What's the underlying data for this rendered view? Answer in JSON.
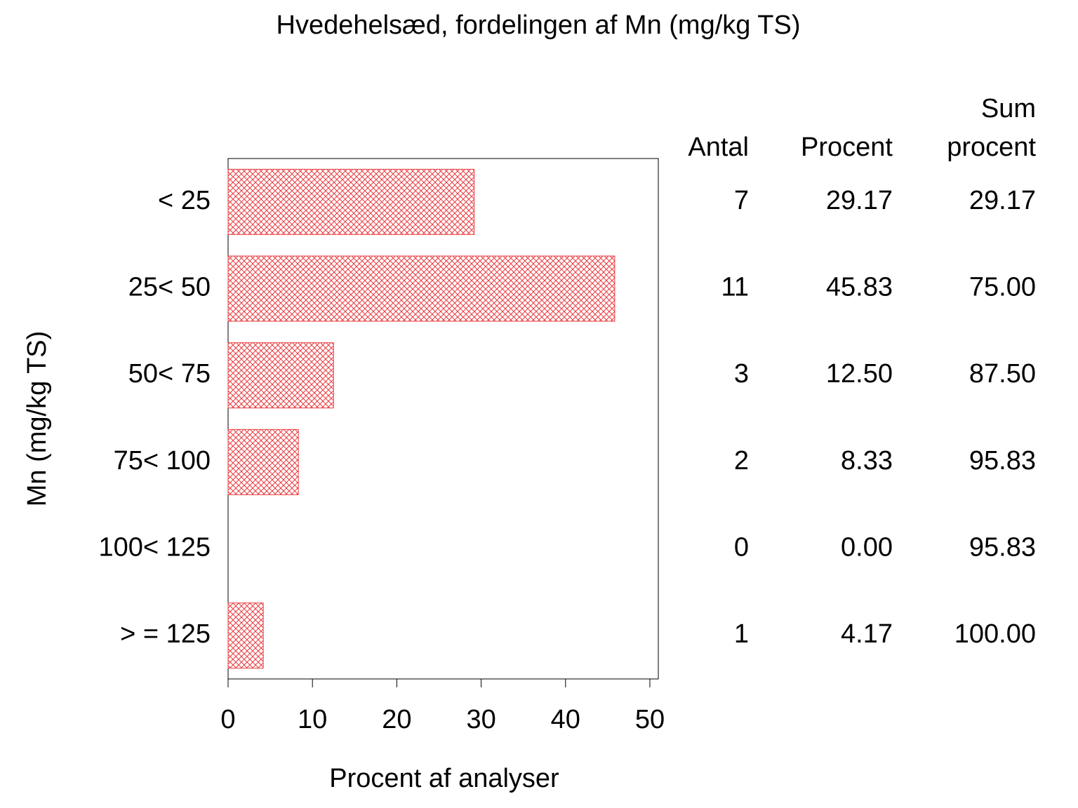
{
  "chart_data": {
    "type": "bar",
    "orientation": "horizontal",
    "title": "Hvedehelsæd, fordelingen af Mn (mg/kg TS)",
    "x_label": "Procent af analyser",
    "y_label": "Mn (mg/kg TS)",
    "categories": [
      "< 25",
      "25< 50",
      "50< 75",
      "75< 100",
      "100< 125",
      "> = 125"
    ],
    "values": [
      29.17,
      45.83,
      12.5,
      8.33,
      0,
      4.17
    ],
    "value_labels": [
      "29.17",
      "45.83",
      "12.50",
      "8.33",
      "0.00",
      "4.17"
    ],
    "color": "#e8393e",
    "xlim": [
      0,
      51
    ],
    "xticks": [
      0,
      10,
      20,
      30,
      40,
      50
    ],
    "table": {
      "count_header": "Antal",
      "percent_header": "Procent",
      "cumulative_header": [
        "Sum",
        "procent"
      ],
      "counts": [
        7,
        11,
        3,
        2,
        0,
        1
      ],
      "cumulative_percent": [
        29.17,
        75,
        87.5,
        95.83,
        95.83,
        100
      ],
      "cumulative_percent_labels": [
        "29.17",
        "75.00",
        "87.50",
        "95.83",
        "95.83",
        "100.00"
      ]
    }
  }
}
